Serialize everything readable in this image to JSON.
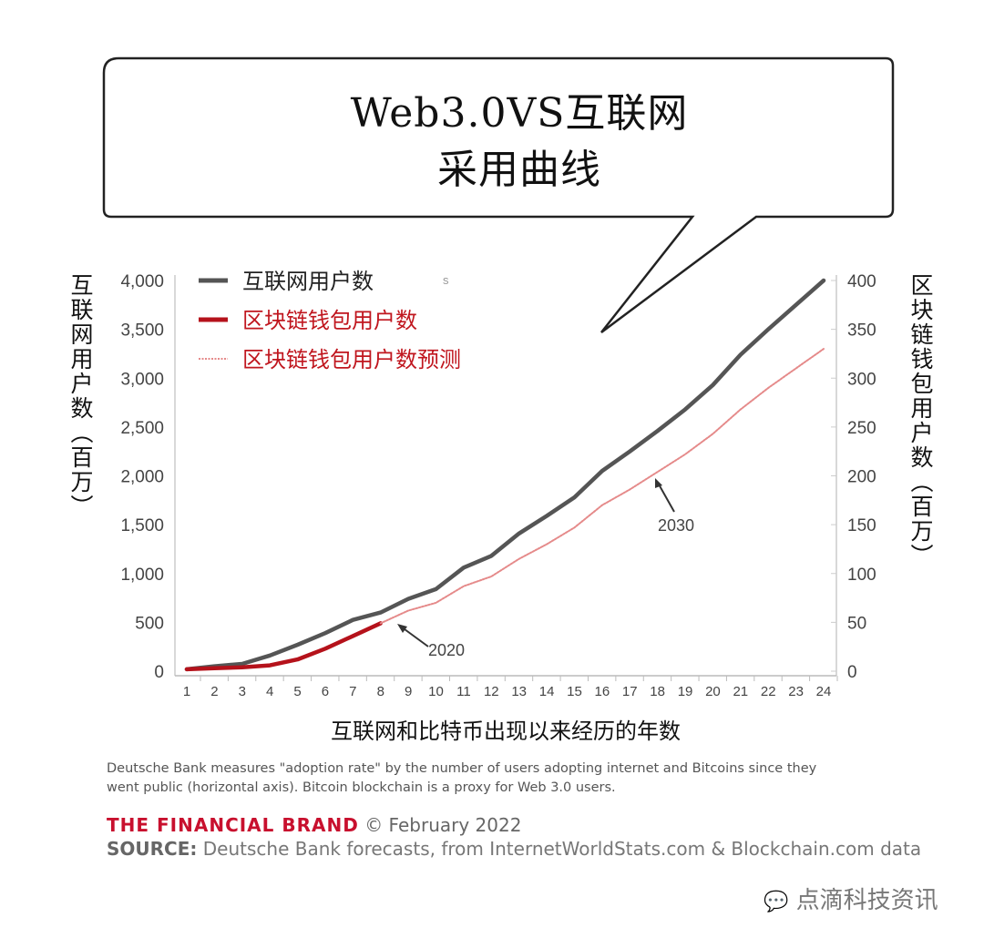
{
  "title_lines": [
    "Web3.0VS互联网",
    "采用曲线"
  ],
  "chart_data": {
    "type": "line",
    "x": [
      1,
      2,
      3,
      4,
      5,
      6,
      7,
      8,
      9,
      10,
      11,
      12,
      13,
      14,
      15,
      16,
      17,
      18,
      19,
      20,
      21,
      22,
      23,
      24
    ],
    "xlabel": "互联网和比特币出现以来经历的年数",
    "ylabel_left": "互联网用户数（百万）",
    "ylabel_right": "区块链钱包用户数（百万）",
    "ylim_left": [
      0,
      4000
    ],
    "ylim_right": [
      0,
      400
    ],
    "yticks_left": [
      "0",
      "500",
      "1,000",
      "1,500",
      "2,000",
      "2,500",
      "3,000",
      "3,500",
      "4,000"
    ],
    "yticks_right": [
      "0",
      "50",
      "100",
      "150",
      "200",
      "250",
      "300",
      "350",
      "400"
    ],
    "grid": false,
    "legend_position": "top-left",
    "series": [
      {
        "name": "互联网用户数",
        "axis": "left",
        "color": "#555555",
        "style": "solid",
        "x": [
          1,
          2,
          3,
          4,
          5,
          6,
          7,
          8,
          9,
          10,
          11,
          12,
          13,
          14,
          15,
          16,
          17,
          18,
          19,
          20,
          21,
          22,
          23,
          24
        ],
        "values": [
          20,
          50,
          75,
          160,
          270,
          390,
          525,
          600,
          740,
          840,
          1060,
          1180,
          1410,
          1590,
          1780,
          2050,
          2250,
          2460,
          2680,
          2930,
          3240,
          3500,
          3750,
          4000
        ]
      },
      {
        "name": "区块链钱包用户数",
        "axis": "right",
        "color": "#b5121b",
        "style": "solid",
        "x": [
          1,
          2,
          3,
          4,
          5,
          6,
          7,
          8
        ],
        "values": [
          2,
          3,
          4,
          6,
          12,
          23,
          36,
          49
        ]
      },
      {
        "name": "区块链钱包用户数预测",
        "axis": "right",
        "color": "#e58a8a",
        "style": "dotted",
        "x": [
          8,
          9,
          10,
          11,
          12,
          13,
          14,
          15,
          16,
          17,
          18,
          19,
          20,
          21,
          22,
          23,
          24
        ],
        "values": [
          49,
          62,
          70,
          87,
          97,
          115,
          130,
          147,
          170,
          186,
          204,
          222,
          243,
          268,
          290,
          310,
          330
        ]
      }
    ],
    "annotations": [
      {
        "text": "2020",
        "x": 8
      },
      {
        "text": "2030",
        "x": 18
      }
    ]
  },
  "stray_mark": "s",
  "note": "Deutsche Bank measures \"adoption rate\" by the number of users adopting internet and Bitcoins since they went public (horizontal axis). Bitcoin blockchain is a proxy for Web 3.0 users.",
  "brand": "THE FINANCIAL BRAND",
  "brand_date": "© February 2022",
  "source_label": "SOURCE:",
  "source_text": "Deutsche Bank forecasts, from InternetWorldStats.com & Blockchain.com data",
  "watermark": "点滴科技资讯",
  "colors": {
    "internet": "#555555",
    "blockchain": "#b5121b",
    "forecast": "#e58a8a",
    "brand": "#c8102e"
  }
}
